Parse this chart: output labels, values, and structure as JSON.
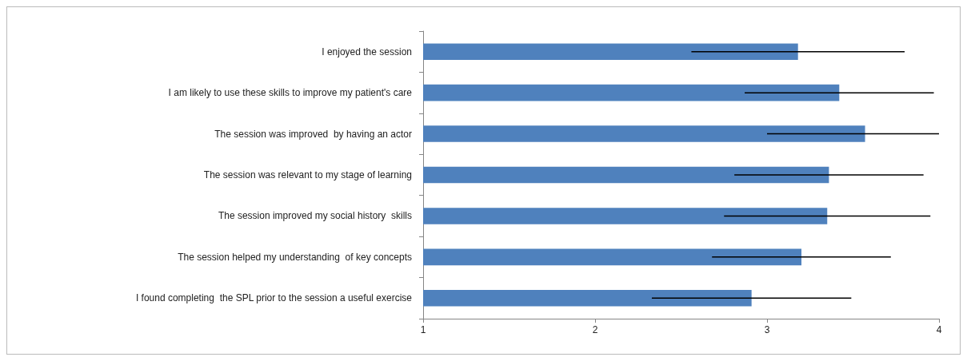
{
  "chart_data": {
    "type": "bar",
    "orientation": "horizontal",
    "categories": [
      "I enjoyed the session",
      "I am likely to use these skills to improve my patient's care",
      "The session was improved  by having an actor",
      "The session was relevant to my stage of learning",
      "The session improved my social history  skills",
      "The session helped my understanding  of key concepts",
      "I found completing  the SPL prior to the session a useful exercise"
    ],
    "values": [
      3.18,
      3.42,
      3.57,
      3.36,
      3.35,
      3.2,
      2.91
    ],
    "errors": [
      0.62,
      0.55,
      [
        3.0,
        4.0
      ],
      0.55,
      0.6,
      0.52,
      0.58
    ],
    "color": "#4f81bd",
    "xlim": [
      1,
      4
    ],
    "xticks": [
      1,
      2,
      3,
      4
    ],
    "grid": false
  }
}
